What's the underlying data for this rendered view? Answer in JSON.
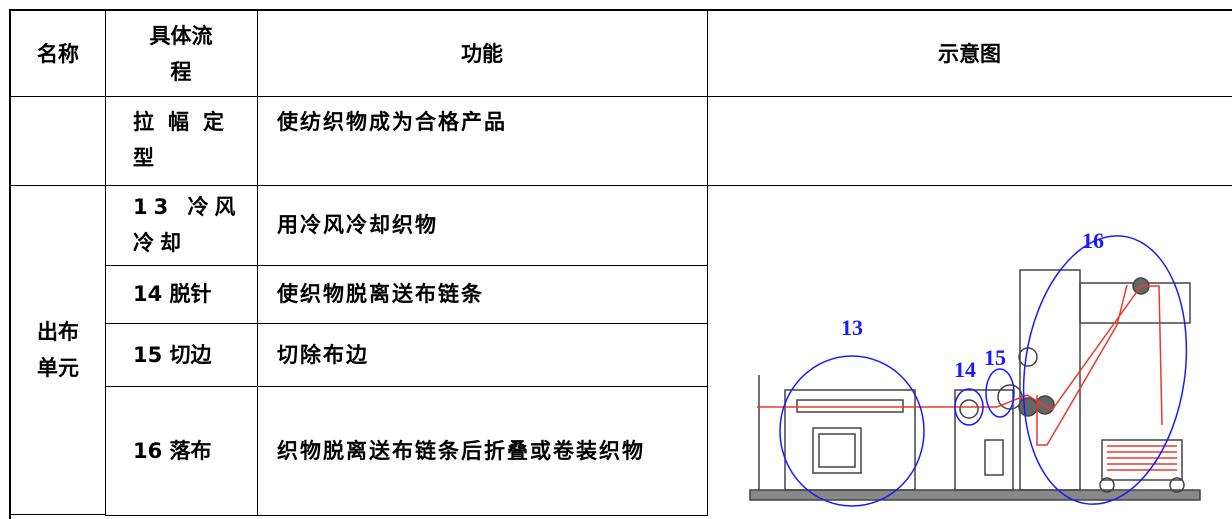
{
  "table": {
    "header": [
      "名称",
      "具体流程",
      "功能",
      "示意图"
    ],
    "rows": [
      {
        "step": "拉幅定型",
        "function": "使纺织物成为合格产品"
      },
      {
        "step": "13 冷风冷却",
        "function": "用冷风冷却织物"
      },
      {
        "step": "14 脱针",
        "function": "使织物脱离送布链条"
      },
      {
        "step": "15 切边",
        "function": "切除布边"
      },
      {
        "step": "16 落布",
        "function": "织物脱离送布链条后折叠或卷装织物"
      }
    ],
    "group": "出布单元",
    "diagram_labels": [
      "13",
      "14",
      "15",
      "16"
    ]
  }
}
